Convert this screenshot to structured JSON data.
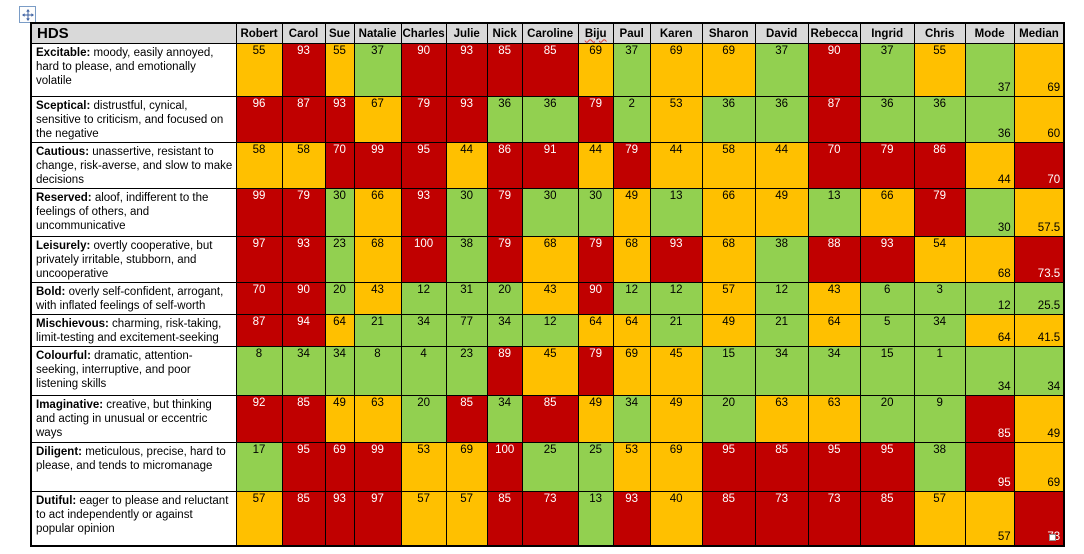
{
  "chart_data": {
    "type": "heatmap",
    "title": "HDS",
    "columns": [
      "Robert",
      "Carol",
      "Sue",
      "Natalie",
      "Charles",
      "Julie",
      "Nick",
      "Caroline",
      "Biju",
      "Paul",
      "Karen",
      "Sharon",
      "David",
      "Rebecca",
      "Ingrid",
      "Chris",
      "Mode",
      "Median"
    ],
    "summary_columns": [
      "Mode",
      "Median"
    ],
    "rows": [
      {
        "trait": "Excitable",
        "description": "moody, easily annoyed, hard to please, and emotionally volatile",
        "values": [
          55,
          93,
          55,
          37,
          90,
          93,
          85,
          85,
          69,
          37,
          69,
          69,
          37,
          90,
          37,
          55,
          37,
          69
        ],
        "colors": [
          "a",
          "r",
          "a",
          "g",
          "r",
          "r",
          "r",
          "r",
          "a",
          "g",
          "a",
          "a",
          "g",
          "r",
          "g",
          "a",
          "g",
          "a"
        ]
      },
      {
        "trait": "Sceptical",
        "description": "distrustful, cynical, sensitive to criticism, and focused on the negative",
        "values": [
          96,
          87,
          93,
          67,
          79,
          93,
          36,
          36,
          79,
          2,
          53,
          36,
          36,
          87,
          36,
          36,
          36,
          60
        ],
        "colors": [
          "r",
          "r",
          "r",
          "a",
          "r",
          "r",
          "g",
          "g",
          "r",
          "g",
          "a",
          "g",
          "g",
          "r",
          "g",
          "g",
          "g",
          "a"
        ]
      },
      {
        "trait": "Cautious",
        "description": "unassertive, resistant to change, risk-averse, and slow to make decisions",
        "values": [
          58,
          58,
          70,
          99,
          95,
          44,
          86,
          91,
          44,
          79,
          44,
          58,
          44,
          70,
          79,
          86,
          44,
          70
        ],
        "colors": [
          "a",
          "a",
          "r",
          "r",
          "r",
          "a",
          "r",
          "r",
          "a",
          "r",
          "a",
          "a",
          "a",
          "r",
          "r",
          "r",
          "a",
          "r"
        ]
      },
      {
        "trait": "Reserved",
        "description": "aloof, indifferent to the feelings of others, and uncommunicative",
        "values": [
          99,
          79,
          30,
          66,
          93,
          30,
          79,
          30,
          30,
          49,
          13,
          66,
          49,
          13,
          66,
          79,
          30,
          57.5
        ],
        "colors": [
          "r",
          "r",
          "g",
          "a",
          "r",
          "g",
          "r",
          "g",
          "g",
          "a",
          "g",
          "a",
          "a",
          "g",
          "a",
          "r",
          "g",
          "a"
        ]
      },
      {
        "trait": "Leisurely",
        "description": "overtly cooperative, but privately irritable, stubborn, and uncooperative",
        "values": [
          97,
          93,
          23,
          68,
          100,
          38,
          79,
          68,
          79,
          68,
          93,
          68,
          38,
          88,
          93,
          54,
          68,
          73.5
        ],
        "colors": [
          "r",
          "r",
          "g",
          "a",
          "r",
          "g",
          "r",
          "a",
          "r",
          "a",
          "r",
          "a",
          "g",
          "r",
          "r",
          "a",
          "a",
          "r"
        ]
      },
      {
        "trait": "Bold",
        "description": "overly self-confident, arrogant, with inflated feelings of self-worth",
        "values": [
          70,
          90,
          20,
          43,
          12,
          31,
          20,
          43,
          90,
          12,
          12,
          57,
          12,
          43,
          6,
          3,
          12,
          25.5
        ],
        "colors": [
          "r",
          "r",
          "g",
          "a",
          "g",
          "g",
          "g",
          "a",
          "r",
          "g",
          "g",
          "a",
          "g",
          "a",
          "g",
          "g",
          "g",
          "g"
        ]
      },
      {
        "trait": "Mischievous",
        "description": "charming, risk-taking, limit-testing and excitement-seeking",
        "values": [
          87,
          94,
          64,
          21,
          34,
          77,
          34,
          12,
          64,
          64,
          21,
          49,
          21,
          64,
          5,
          34,
          64,
          41.5
        ],
        "colors": [
          "r",
          "r",
          "a",
          "g",
          "g",
          "g",
          "g",
          "g",
          "a",
          "a",
          "g",
          "a",
          "g",
          "a",
          "g",
          "g",
          "a",
          "a"
        ]
      },
      {
        "trait": "Colourful",
        "description": "dramatic, attention-seeking, interruptive, and poor listening skills",
        "values": [
          8,
          34,
          34,
          8,
          4,
          23,
          89,
          45,
          79,
          69,
          45,
          15,
          34,
          34,
          15,
          1,
          34,
          34
        ],
        "colors": [
          "g",
          "g",
          "g",
          "g",
          "g",
          "g",
          "r",
          "a",
          "r",
          "a",
          "a",
          "g",
          "g",
          "g",
          "g",
          "g",
          "g",
          "g"
        ]
      },
      {
        "trait": "Imaginative",
        "description": "creative, but thinking and acting in unusual or eccentric ways",
        "values": [
          92,
          85,
          49,
          63,
          20,
          85,
          34,
          85,
          49,
          34,
          49,
          20,
          63,
          63,
          20,
          9,
          85,
          49
        ],
        "colors": [
          "r",
          "r",
          "a",
          "a",
          "g",
          "r",
          "g",
          "r",
          "a",
          "g",
          "a",
          "g",
          "a",
          "a",
          "g",
          "g",
          "r",
          "a"
        ]
      },
      {
        "trait": "Diligent",
        "description": "meticulous, precise, hard to please, and tends to micromanage",
        "values": [
          17,
          95,
          69,
          99,
          53,
          69,
          100,
          25,
          25,
          53,
          69,
          95,
          85,
          95,
          95,
          38,
          95,
          69
        ],
        "colors": [
          "g",
          "r",
          "r",
          "r",
          "a",
          "a",
          "r",
          "g",
          "g",
          "a",
          "a",
          "r",
          "r",
          "r",
          "r",
          "g",
          "r",
          "a"
        ]
      },
      {
        "trait": "Dutiful",
        "description": "eager to please and reluctant to act independently or against popular opinion",
        "values": [
          57,
          85,
          93,
          97,
          57,
          57,
          85,
          73,
          13,
          93,
          40,
          85,
          73,
          73,
          85,
          57,
          57,
          73
        ],
        "colors": [
          "a",
          "r",
          "r",
          "r",
          "a",
          "a",
          "r",
          "r",
          "g",
          "r",
          "a",
          "r",
          "r",
          "r",
          "r",
          "a",
          "a",
          "r"
        ]
      }
    ],
    "color_scale": {
      "r": "#C00000",
      "a": "#FFC000",
      "g": "#92D050"
    },
    "header_bg": "#D9D9D9"
  },
  "artifacts": {
    "spellcheck_flagged_word": "Biju"
  }
}
